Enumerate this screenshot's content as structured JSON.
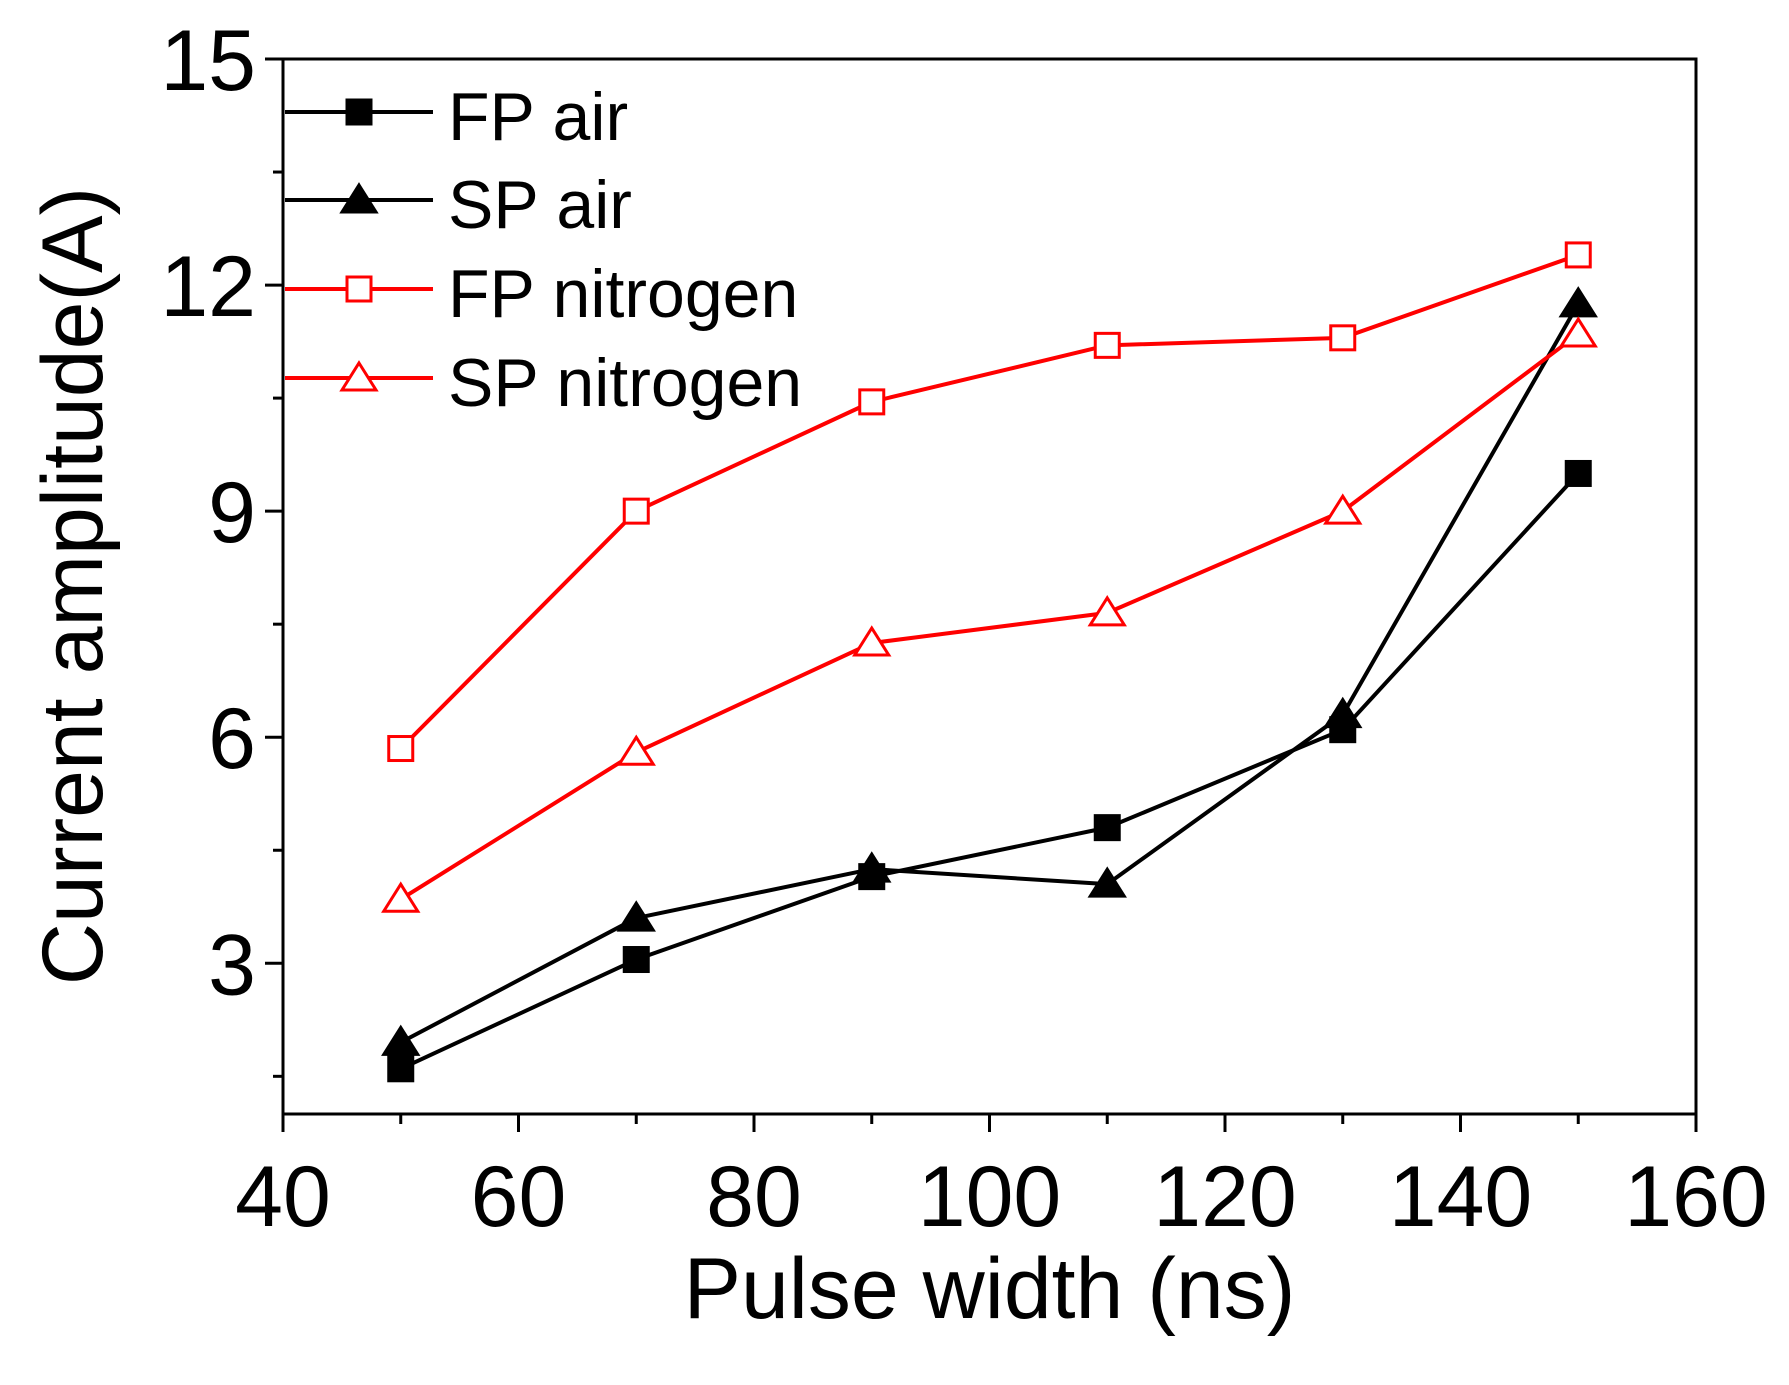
{
  "chart_data": {
    "type": "line",
    "title": "",
    "xlabel": "Pulse width (ns)",
    "ylabel": "Current amplitude(A)",
    "xlim": [
      40,
      160
    ],
    "ylim": [
      1,
      15
    ],
    "xticks": [
      40,
      60,
      80,
      100,
      120,
      140,
      160
    ],
    "xticks_minor": [
      50,
      70,
      90,
      110,
      130,
      150
    ],
    "yticks": [
      3,
      6,
      9,
      12,
      15
    ],
    "yticks_minor": [
      1.5,
      4.5,
      7.5,
      10.5,
      13.5
    ],
    "grid": false,
    "legend_position": "top-left",
    "x": [
      50,
      70,
      90,
      110,
      130,
      150
    ],
    "series": [
      {
        "name": "FP air",
        "color": "#000000",
        "marker": "square-filled",
        "values": [
          1.6,
          3.05,
          4.15,
          4.8,
          6.1,
          9.5
        ]
      },
      {
        "name": "SP air",
        "color": "#000000",
        "marker": "triangle-filled",
        "values": [
          1.95,
          3.6,
          4.25,
          4.05,
          6.3,
          11.75
        ]
      },
      {
        "name": "FP nitrogen",
        "color": "#ff0000",
        "marker": "square-open",
        "values": [
          5.85,
          9.0,
          10.45,
          11.2,
          11.3,
          12.4
        ]
      },
      {
        "name": "SP nitrogen",
        "color": "#ff0000",
        "marker": "triangle-open",
        "values": [
          3.85,
          5.8,
          7.25,
          7.65,
          9.0,
          11.35
        ]
      }
    ]
  }
}
